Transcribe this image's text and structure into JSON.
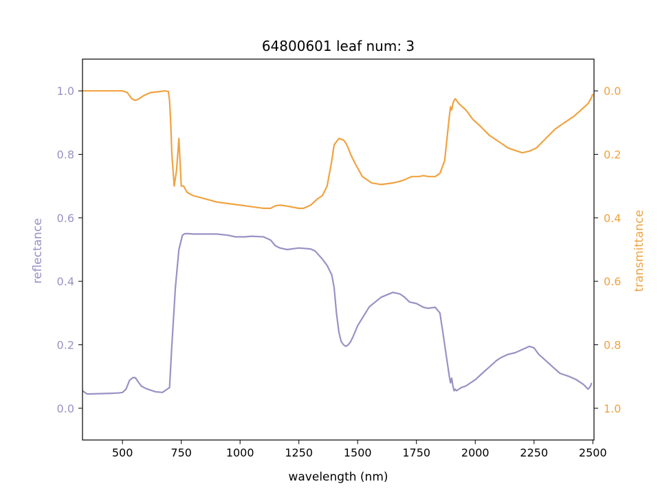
{
  "chart_data": {
    "type": "line",
    "title": "64800601 leaf num: 3",
    "xlabel": "wavelength (nm)",
    "ylabel_left": "reflectance",
    "ylabel_right": "transmittance",
    "xlim": [
      330,
      2505
    ],
    "ylim_left": [
      -0.1,
      1.1
    ],
    "ylim_right": [
      1.1,
      -0.1
    ],
    "right_axis_inverted": true,
    "grid": false,
    "x_ticks": [
      500,
      750,
      1000,
      1250,
      1500,
      1750,
      2000,
      2250,
      2500
    ],
    "x_tick_labels": [
      "500",
      "750",
      "1000",
      "1250",
      "1500",
      "1750",
      "2000",
      "2250",
      "2500"
    ],
    "y_left_ticks": [
      0.0,
      0.2,
      0.4,
      0.6,
      0.8,
      1.0
    ],
    "y_left_tick_labels": [
      "0.0",
      "0.2",
      "0.4",
      "0.6",
      "0.8",
      "1.0"
    ],
    "y_right_ticks": [
      0.0,
      0.2,
      0.4,
      0.6,
      0.8,
      1.0
    ],
    "y_right_tick_labels": [
      "0.0",
      "0.2",
      "0.4",
      "0.6",
      "0.8",
      "1.0"
    ],
    "colors": {
      "reflectance": "#9891c4",
      "transmittance": "#f0a240"
    },
    "series": [
      {
        "axis": "left",
        "x": [
          330,
          340,
          350,
          400,
          450,
          480,
          500,
          515,
          530,
          545,
          555,
          565,
          580,
          600,
          640,
          670,
          690,
          700,
          710,
          725,
          740,
          755,
          765,
          780,
          800,
          850,
          900,
          950,
          980,
          1000,
          1020,
          1050,
          1100,
          1130,
          1150,
          1170,
          1200,
          1250,
          1300,
          1320,
          1350,
          1370,
          1390,
          1400,
          1410,
          1420,
          1430,
          1440,
          1450,
          1460,
          1470,
          1480,
          1500,
          1550,
          1600,
          1650,
          1680,
          1700,
          1720,
          1750,
          1780,
          1800,
          1830,
          1850,
          1860,
          1870,
          1880,
          1890,
          1895,
          1900,
          1905,
          1910,
          1915,
          1920,
          1930,
          1940,
          1960,
          1980,
          2000,
          2030,
          2060,
          2090,
          2110,
          2140,
          2170,
          2200,
          2215,
          2230,
          2250,
          2270,
          2300,
          2330,
          2360,
          2400,
          2430,
          2460,
          2480,
          2490,
          2495
        ],
        "y": [
          0.055,
          0.05,
          0.045,
          0.046,
          0.047,
          0.048,
          0.05,
          0.06,
          0.088,
          0.097,
          0.096,
          0.085,
          0.07,
          0.062,
          0.052,
          0.05,
          0.06,
          0.065,
          0.2,
          0.38,
          0.5,
          0.545,
          0.55,
          0.55,
          0.549,
          0.549,
          0.549,
          0.545,
          0.54,
          0.54,
          0.54,
          0.542,
          0.54,
          0.53,
          0.512,
          0.505,
          0.5,
          0.505,
          0.502,
          0.495,
          0.47,
          0.45,
          0.42,
          0.38,
          0.3,
          0.24,
          0.21,
          0.2,
          0.195,
          0.2,
          0.21,
          0.225,
          0.26,
          0.32,
          0.35,
          0.365,
          0.36,
          0.35,
          0.335,
          0.33,
          0.318,
          0.315,
          0.318,
          0.3,
          0.25,
          0.2,
          0.15,
          0.1,
          0.08,
          0.095,
          0.07,
          0.055,
          0.06,
          0.055,
          0.06,
          0.065,
          0.07,
          0.08,
          0.09,
          0.11,
          0.13,
          0.15,
          0.16,
          0.17,
          0.175,
          0.185,
          0.19,
          0.195,
          0.19,
          0.17,
          0.15,
          0.13,
          0.11,
          0.1,
          0.09,
          0.075,
          0.06,
          0.07,
          0.08
        ]
      },
      {
        "axis": "right",
        "x": [
          330,
          350,
          400,
          500,
          520,
          540,
          555,
          570,
          590,
          620,
          650,
          680,
          695,
          700,
          705,
          710,
          720,
          730,
          740,
          750,
          760,
          775,
          800,
          850,
          900,
          950,
          1000,
          1050,
          1100,
          1130,
          1150,
          1170,
          1200,
          1250,
          1270,
          1300,
          1330,
          1350,
          1370,
          1380,
          1390,
          1400,
          1420,
          1440,
          1450,
          1460,
          1470,
          1490,
          1520,
          1560,
          1600,
          1650,
          1680,
          1700,
          1730,
          1760,
          1780,
          1800,
          1830,
          1850,
          1870,
          1880,
          1890,
          1895,
          1900,
          1905,
          1910,
          1915,
          1920,
          1930,
          1960,
          1990,
          2020,
          2060,
          2100,
          2140,
          2180,
          2200,
          2230,
          2260,
          2300,
          2340,
          2380,
          2420,
          2450,
          2480,
          2495,
          2500
        ],
        "y": [
          0.0,
          0.0,
          0.0,
          0.0,
          0.005,
          0.025,
          0.03,
          0.025,
          0.015,
          0.005,
          0.003,
          0.0,
          0.002,
          0.03,
          0.1,
          0.2,
          0.3,
          0.25,
          0.15,
          0.3,
          0.3,
          0.32,
          0.33,
          0.34,
          0.35,
          0.355,
          0.36,
          0.365,
          0.37,
          0.37,
          0.362,
          0.36,
          0.363,
          0.37,
          0.37,
          0.36,
          0.34,
          0.33,
          0.3,
          0.26,
          0.22,
          0.17,
          0.15,
          0.155,
          0.165,
          0.18,
          0.2,
          0.23,
          0.27,
          0.29,
          0.295,
          0.29,
          0.285,
          0.28,
          0.27,
          0.27,
          0.267,
          0.27,
          0.27,
          0.26,
          0.22,
          0.15,
          0.08,
          0.05,
          0.06,
          0.04,
          0.03,
          0.025,
          0.03,
          0.04,
          0.06,
          0.09,
          0.11,
          0.14,
          0.16,
          0.18,
          0.19,
          0.195,
          0.19,
          0.18,
          0.15,
          0.12,
          0.1,
          0.08,
          0.06,
          0.04,
          0.02,
          0.01
        ]
      }
    ]
  }
}
